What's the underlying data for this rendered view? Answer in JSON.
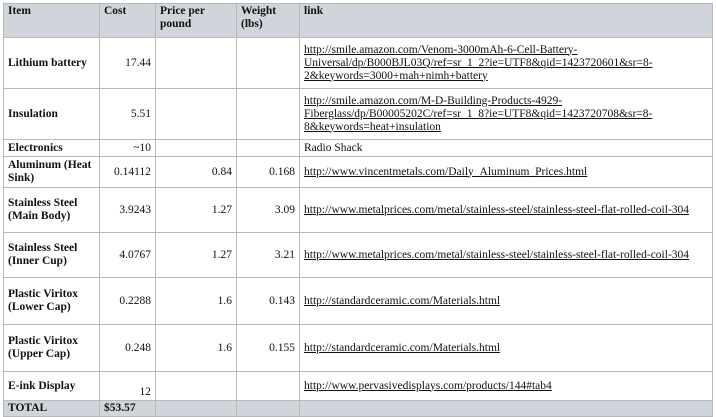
{
  "headers": {
    "item": "Item",
    "cost": "Cost",
    "price": "Price per pound",
    "weight": "Weight (lbs)",
    "link": "link"
  },
  "rows": [
    {
      "item": "Lithium battery",
      "cost": "17.44",
      "price": "",
      "weight": "",
      "link": "http://smile.amazon.com/Venom-3000mAh-6-Cell-Battery-Universal/dp/B000BJL03Q/ref=sr_1_2?ie=UTF8&qid=1423720601&sr=8-2&keywords=3000+mah+nimh+battery"
    },
    {
      "item": "Insulation",
      "cost": "5.51",
      "price": "",
      "weight": "",
      "link": "http://smile.amazon.com/M-D-Building-Products-4929-Fiberglass/dp/B00005202C/ref=sr_1_8?ie=UTF8&qid=1423720708&sr=8-8&keywords=heat+insulation"
    },
    {
      "item": "Electronics",
      "cost": "~10",
      "price": "",
      "weight": "",
      "link": "Radio Shack"
    },
    {
      "item": "Aluminum (Heat Sink)",
      "cost": "0.14112",
      "price": "0.84",
      "weight": "0.168",
      "link": "http://www.vincentmetals.com/Daily_Aluminum_Prices.html"
    },
    {
      "item": "Stainless Steel (Main Body)",
      "cost": "3.9243",
      "price": "1.27",
      "weight": "3.09",
      "link": "http://www.metalprices.com/metal/stainless-steel/stainless-steel-flat-rolled-coil-304"
    },
    {
      "item": "Stainless Steel (Inner Cup)",
      "cost": "4.0767",
      "price": "1.27",
      "weight": "3.21",
      "link": "http://www.metalprices.com/metal/stainless-steel/stainless-steel-flat-rolled-coil-304"
    },
    {
      "item": "Plastic Viritox (Lower Cap)",
      "cost": "0.2288",
      "price": "1.6",
      "weight": "0.143",
      "link": "http://standardceramic.com/Materials.html"
    },
    {
      "item": "Plastic Viritox (Upper Cap)",
      "cost": "0.248",
      "price": "1.6",
      "weight": "0.155",
      "link": "http://standardceramic.com/Materials.html"
    },
    {
      "item": "E-ink Display",
      "cost": "12",
      "price": "",
      "weight": "",
      "link": "http://www.pervasivedisplays.com/products/144#tab4"
    }
  ],
  "total": {
    "label": "TOTAL",
    "cost": "$53.57"
  }
}
